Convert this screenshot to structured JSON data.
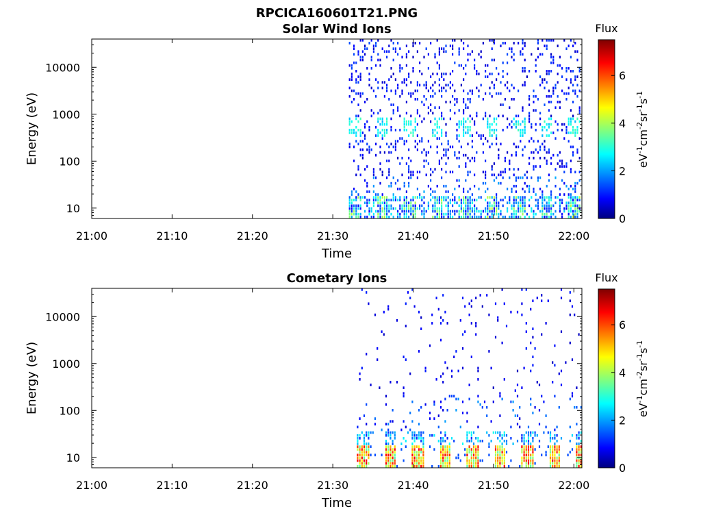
{
  "figure_title": "RPCICA160601T21.PNG",
  "chart_data": [
    {
      "type": "heatmap",
      "title": "Solar Wind Ions",
      "xlabel": "Time",
      "ylabel": "Energy (eV)",
      "x_ticks": [
        "21:00",
        "21:10",
        "21:20",
        "21:30",
        "21:40",
        "21:50",
        "22:00"
      ],
      "xlim": [
        "21:00",
        "22:01"
      ],
      "y_scale": "log",
      "y_ticks": [
        "10",
        "100",
        "1000",
        "10000"
      ],
      "ylim": [
        6,
        40000
      ],
      "data_start": "21:32",
      "colorbar": {
        "title": "Flux",
        "label": "eV-1cm-2sr-1s-1",
        "ticks": [
          "0",
          "2",
          "4",
          "6"
        ],
        "range": [
          0,
          7.5
        ],
        "colormap": "jet"
      }
    },
    {
      "type": "heatmap",
      "title": "Cometary Ions",
      "xlabel": "Time",
      "ylabel": "Energy (eV)",
      "x_ticks": [
        "21:00",
        "21:10",
        "21:20",
        "21:30",
        "21:40",
        "21:50",
        "22:00"
      ],
      "xlim": [
        "21:00",
        "22:01"
      ],
      "y_scale": "log",
      "y_ticks": [
        "10",
        "100",
        "1000",
        "10000"
      ],
      "ylim": [
        6,
        40000
      ],
      "data_start": "21:33",
      "colorbar": {
        "title": "Flux",
        "label": "eV-1cm-2sr-1s-1",
        "ticks": [
          "0",
          "2",
          "4",
          "6"
        ],
        "range": [
          0,
          7.5
        ],
        "colormap": "jet"
      }
    }
  ]
}
